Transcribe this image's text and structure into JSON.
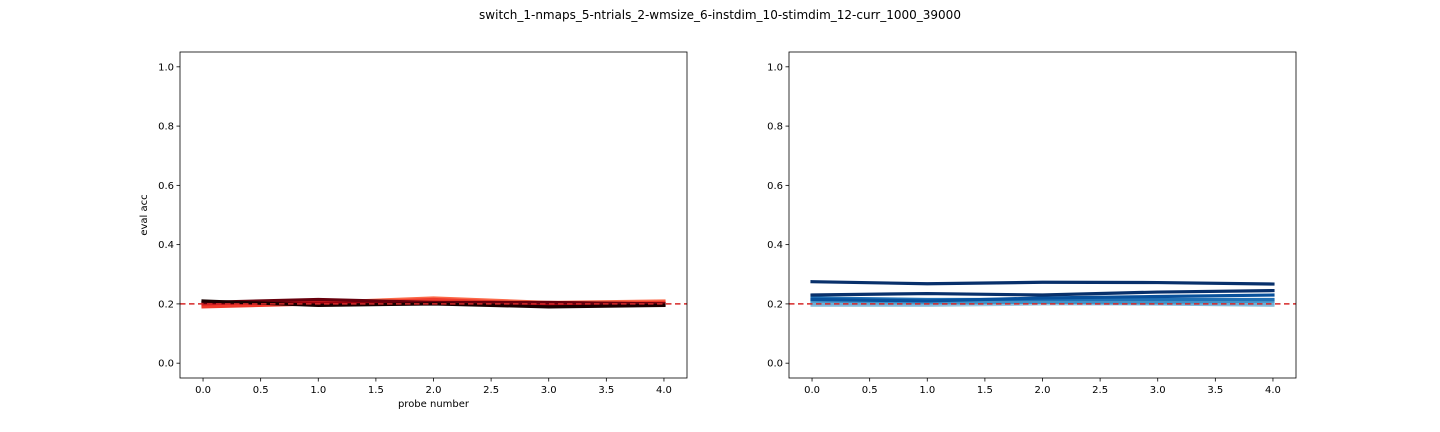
{
  "figure": {
    "title": "switch_1-nmaps_5-ntrials_2-wmsize_6-instdim_10-stimdim_12-curr_1000_39000"
  },
  "chart_data": [
    {
      "type": "line",
      "xlabel": "probe number",
      "ylabel": "eval acc",
      "xlim": [
        -0.2,
        4.2
      ],
      "ylim": [
        -0.05,
        1.05
      ],
      "xticks": [
        0.0,
        0.5,
        1.0,
        1.5,
        2.0,
        2.5,
        3.0,
        3.5,
        4.0
      ],
      "xtick_labels": [
        "0.0",
        "0.5",
        "1.0",
        "1.5",
        "2.0",
        "2.5",
        "3.0",
        "3.5",
        "4.0"
      ],
      "yticks": [
        0.0,
        0.2,
        0.4,
        0.6,
        0.8,
        1.0
      ],
      "ytick_labels": [
        "0.0",
        "0.2",
        "0.4",
        "0.6",
        "0.8",
        "1.0"
      ],
      "grid": false,
      "legend": "none",
      "x": [
        0,
        1,
        2,
        3,
        4
      ],
      "reference_line": {
        "y": 0.2,
        "color": "#d62728",
        "style": "dashed"
      },
      "series": [
        {
          "color": "#fb6a4a",
          "values": [
            0.195,
            0.205,
            0.22,
            0.205,
            0.21
          ]
        },
        {
          "color": "#ef3b2c",
          "values": [
            0.19,
            0.2,
            0.215,
            0.2,
            0.205
          ]
        },
        {
          "color": "#cb181d",
          "values": [
            0.2,
            0.21,
            0.2,
            0.205,
            0.2
          ]
        },
        {
          "color": "#99000d",
          "values": [
            0.205,
            0.2,
            0.205,
            0.2,
            0.2
          ]
        },
        {
          "color": "#67000d",
          "values": [
            0.205,
            0.215,
            0.205,
            0.205,
            0.2
          ]
        },
        {
          "color": "#1a0000",
          "values": [
            0.21,
            0.195,
            0.2,
            0.19,
            0.195
          ]
        }
      ]
    },
    {
      "type": "line",
      "xlabel": "",
      "ylabel": "",
      "xlim": [
        -0.2,
        4.2
      ],
      "ylim": [
        -0.05,
        1.05
      ],
      "xticks": [
        0.0,
        0.5,
        1.0,
        1.5,
        2.0,
        2.5,
        3.0,
        3.5,
        4.0
      ],
      "xtick_labels": [
        "0.0",
        "0.5",
        "1.0",
        "1.5",
        "2.0",
        "2.5",
        "3.0",
        "3.5",
        "4.0"
      ],
      "yticks": [
        0.0,
        0.2,
        0.4,
        0.6,
        0.8,
        1.0
      ],
      "ytick_labels": [
        "0.0",
        "0.2",
        "0.4",
        "0.6",
        "0.8",
        "1.0"
      ],
      "grid": false,
      "legend": "none",
      "x": [
        0,
        1,
        2,
        3,
        4
      ],
      "reference_line": {
        "y": 0.2,
        "color": "#d62728",
        "style": "dashed"
      },
      "series": [
        {
          "color": "#9ecae1",
          "values": [
            0.195,
            0.195,
            0.2,
            0.2,
            0.195
          ]
        },
        {
          "color": "#6baed6",
          "values": [
            0.2,
            0.2,
            0.205,
            0.2,
            0.2
          ]
        },
        {
          "color": "#4292c6",
          "values": [
            0.21,
            0.205,
            0.205,
            0.205,
            0.21
          ]
        },
        {
          "color": "#2171b5",
          "values": [
            0.22,
            0.215,
            0.215,
            0.215,
            0.215
          ]
        },
        {
          "color": "#08519c",
          "values": [
            0.215,
            0.21,
            0.22,
            0.225,
            0.23
          ]
        },
        {
          "color": "#08306b",
          "values": [
            0.23,
            0.235,
            0.23,
            0.24,
            0.245
          ]
        },
        {
          "color": "#08306b",
          "values": [
            0.275,
            0.268,
            0.273,
            0.272,
            0.267
          ]
        }
      ]
    }
  ]
}
